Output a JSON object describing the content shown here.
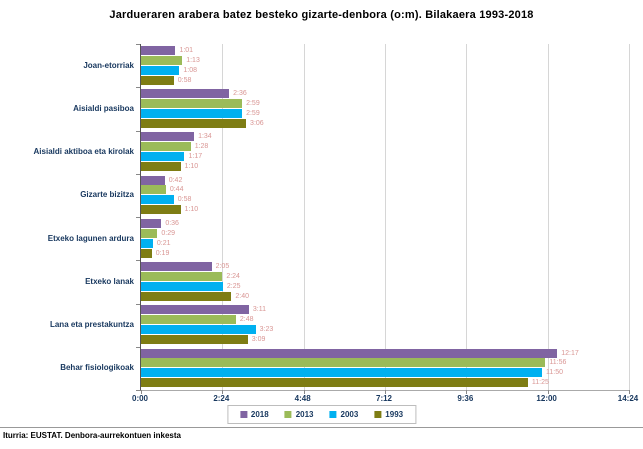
{
  "title": "Jardueraren arabera batez besteko gizarte-denbora (o:m). Bilakaera 1993-2018",
  "footer": "Iturria: EUSTAT. Denbora-aurrekontuen inkesta",
  "chart_data": {
    "type": "bar",
    "orientation": "horizontal",
    "title": "Jardueraren arabera batez besteko gizarte-denbora (o:m). Bilakaera 1993-2018",
    "categories": [
      "Joan-etorriak",
      "Aisialdi pasiboa",
      "Aisialdi aktiboa eta kirolak",
      "Gizarte bizitza",
      "Etxeko lagunen ardura",
      "Etxeko lanak",
      "Lana eta prestakuntza",
      "Behar fisiologikoak"
    ],
    "series": [
      {
        "name": "2018",
        "color": "#8064A2",
        "values": [
          "1:01",
          "2:36",
          "1:34",
          "0:42",
          "0:36",
          "2:05",
          "3:11",
          "12:17"
        ]
      },
      {
        "name": "2013",
        "color": "#9BBB59",
        "values": [
          "1:13",
          "2:59",
          "1:28",
          "0:44",
          "0:29",
          "2:24",
          "2:48",
          "11:56"
        ]
      },
      {
        "name": "2003",
        "color": "#00B0F0",
        "values": [
          "1:08",
          "2:59",
          "1:17",
          "0:58",
          "0:21",
          "2:25",
          "3:23",
          "11:50"
        ]
      },
      {
        "name": "1993",
        "color": "#7E7D14",
        "values": [
          "0:58",
          "3:06",
          "1:10",
          "1:10",
          "0:19",
          "2:40",
          "3:09",
          "11:25"
        ]
      }
    ],
    "x_ticks": [
      "0:00",
      "2:24",
      "4:48",
      "7:12",
      "9:36",
      "12:00",
      "14:24"
    ],
    "xlim_minutes": [
      0,
      864
    ],
    "grid": "vertical",
    "legend_position": "bottom",
    "value_label_color": "#D99694",
    "axis_label_color": "#17375E"
  }
}
